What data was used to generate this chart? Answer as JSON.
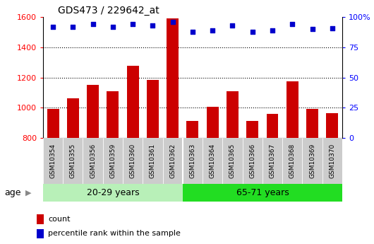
{
  "title": "GDS473 / 229642_at",
  "samples": [
    "GSM10354",
    "GSM10355",
    "GSM10356",
    "GSM10359",
    "GSM10360",
    "GSM10361",
    "GSM10362",
    "GSM10363",
    "GSM10364",
    "GSM10365",
    "GSM10366",
    "GSM10367",
    "GSM10368",
    "GSM10369",
    "GSM10370"
  ],
  "counts": [
    990,
    1062,
    1150,
    1108,
    1278,
    1185,
    1590,
    912,
    1005,
    1108,
    912,
    960,
    1175,
    992,
    965
  ],
  "percentile_ranks": [
    92,
    92,
    94,
    92,
    94,
    93,
    96,
    88,
    89,
    93,
    88,
    89,
    94,
    90,
    91
  ],
  "groups": [
    {
      "label": "20-29 years",
      "start": 0,
      "end": 7,
      "color": "#b8f0b8"
    },
    {
      "label": "65-71 years",
      "start": 7,
      "end": 15,
      "color": "#22dd22"
    }
  ],
  "ylim_left": [
    800,
    1600
  ],
  "ylim_right": [
    0,
    100
  ],
  "yticks_left": [
    800,
    1000,
    1200,
    1400,
    1600
  ],
  "yticks_right": [
    0,
    25,
    50,
    75,
    100
  ],
  "bar_color": "#CC0000",
  "dot_color": "#0000CC",
  "bar_width": 0.6,
  "bg_color": "#ffffff",
  "tick_label_bg": "#cccccc",
  "age_label": "age",
  "legend_count_label": "count",
  "legend_pct_label": "percentile rank within the sample"
}
